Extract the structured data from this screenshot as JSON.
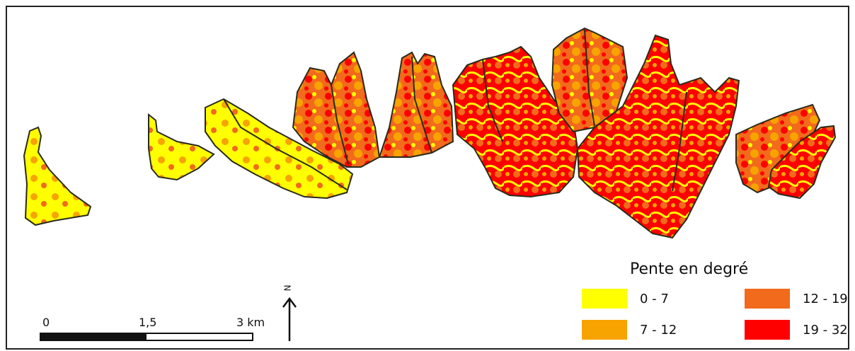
{
  "legend": {
    "title": "Pente en degré",
    "classes": [
      {
        "label": "0 - 7",
        "color": "#FFFF00"
      },
      {
        "label": "7 - 12",
        "color": "#F7A300"
      },
      {
        "label": "12 - 19",
        "color": "#F26A1B"
      },
      {
        "label": "19 - 32",
        "color": "#FF0000"
      }
    ]
  },
  "scale_bar": {
    "labels": [
      "0",
      "1,5",
      "3 km"
    ]
  },
  "north_arrow": {
    "label": "N",
    "icon": "north-arrow-icon"
  },
  "colors": {
    "outline": "#2a2a1a"
  }
}
